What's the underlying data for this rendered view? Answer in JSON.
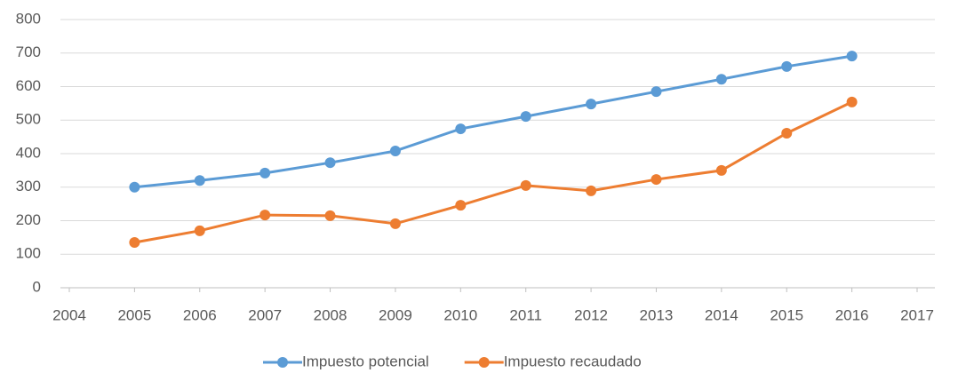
{
  "chart_data": {
    "type": "line",
    "x": [
      2005,
      2006,
      2007,
      2008,
      2009,
      2010,
      2011,
      2012,
      2013,
      2014,
      2015,
      2016
    ],
    "series": [
      {
        "name": "Impuesto potencial",
        "color": "#5b9bd5",
        "values": [
          300,
          320,
          342,
          373,
          408,
          474,
          511,
          548,
          585,
          622,
          660,
          691
        ]
      },
      {
        "name": "Impuesto recaudado",
        "color": "#ed7d31",
        "values": [
          135,
          170,
          217,
          215,
          191,
          246,
          305,
          289,
          323,
          350,
          461,
          554
        ]
      }
    ],
    "xlim": [
      2004,
      2017
    ],
    "xticks": [
      2004,
      2005,
      2006,
      2007,
      2008,
      2009,
      2010,
      2011,
      2012,
      2013,
      2014,
      2015,
      2016,
      2017
    ],
    "ylim": [
      0,
      800
    ],
    "yticks": [
      0,
      100,
      200,
      300,
      400,
      500,
      600,
      700,
      800
    ],
    "grid": true,
    "legend": "bottom"
  }
}
